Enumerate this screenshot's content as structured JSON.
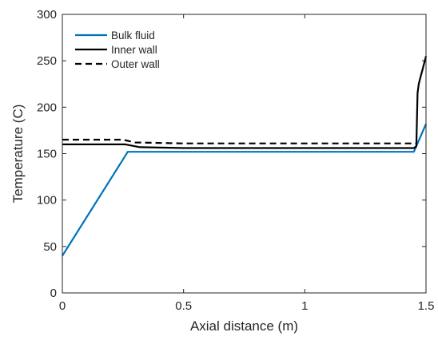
{
  "chart_data": {
    "type": "line",
    "title": "",
    "xlabel": "Axial distance (m)",
    "ylabel": "Temperature (C)",
    "xlim": [
      0,
      1.5
    ],
    "ylim": [
      0,
      300
    ],
    "xticks": [
      0,
      0.5,
      1,
      1.5
    ],
    "xtick_labels": [
      "0",
      "0.5",
      "1",
      "1.5"
    ],
    "yticks": [
      0,
      50,
      100,
      150,
      200,
      250,
      300
    ],
    "ytick_labels": [
      "0",
      "50",
      "100",
      "150",
      "200",
      "250",
      "300"
    ],
    "grid": false,
    "legend_position": "top-left",
    "series": [
      {
        "name": "Bulk fluid",
        "color": "#0072bd",
        "style": "solid",
        "x": [
          0,
          0.27,
          1.45,
          1.5
        ],
        "y": [
          40,
          152,
          152,
          182
        ]
      },
      {
        "name": "Inner wall",
        "color": "#000000",
        "style": "solid",
        "x": [
          0,
          0.26,
          0.32,
          0.5,
          1.0,
          1.45,
          1.46,
          1.465,
          1.47,
          1.475,
          1.48,
          1.485,
          1.49,
          1.495,
          1.5
        ],
        "y": [
          160,
          160,
          157,
          156,
          156,
          156,
          158,
          215,
          225,
          230,
          235,
          240,
          245,
          250,
          255
        ]
      },
      {
        "name": "Outer wall",
        "color": "#000000",
        "style": "dashed",
        "x": [
          0,
          0.25,
          0.3,
          0.5,
          1.0,
          1.46
        ],
        "y": [
          165,
          165,
          162,
          161,
          161,
          161
        ]
      }
    ]
  }
}
